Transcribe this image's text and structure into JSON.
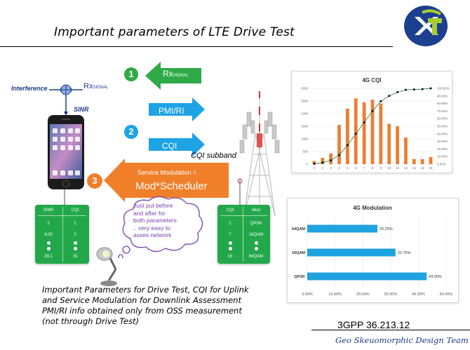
{
  "slide": {
    "title": "Important parameters of LTE Drive Test",
    "reference": "3GPP 36.213.12",
    "footer": "Geo Skeuomorphic Design Team",
    "logo_icon": "xl-logo-icon",
    "caption_lines": [
      "Important Parameters for Drive Test, CQI for Uplink",
      "and Service Modulation for Downlink Assessment",
      "PMI/RI info obtained only from OSS measurement",
      "(not through Drive Test)"
    ]
  },
  "diagram": {
    "interference": "Interference",
    "rx_signal_left": "Rx",
    "rx_signal_left_sub": "SIGNAL",
    "sinr": "SINR",
    "arrow1": {
      "num": "1",
      "label": "Rx",
      "label_sub": "SIGNAL",
      "color": "#2eaa47"
    },
    "arrow2": {
      "num": "2",
      "label_top": "PMI/RI",
      "label_bottom": "CQI",
      "color": "#1ea3e4"
    },
    "cqi_subband": "CQI subband",
    "arrow3": {
      "num": "3",
      "line1": "Service Modulation =",
      "line2": "Mod*Scheduler",
      "color": "#f07f2a"
    },
    "cloud_lines": [
      "Just put before",
      "and after for",
      "both parameters",
      ".. very easy to",
      "asses network"
    ],
    "table_left": {
      "headers": [
        "SINR",
        "CQI"
      ],
      "rows": [
        [
          "2",
          "1"
        ],
        [
          "4.05",
          "2"
        ],
        [
          "29.1",
          "15"
        ]
      ]
    },
    "table_right": {
      "headers": [
        "CQI",
        "Mod"
      ],
      "rows": [
        [
          "1",
          "QPSK"
        ],
        [
          "7",
          "16QAM"
        ],
        [
          "15",
          "64QAM"
        ]
      ]
    }
  },
  "chart_data": [
    {
      "type": "bar",
      "title": "4G CQI",
      "categories": [
        "1",
        "2",
        "3",
        "4",
        "5",
        "6",
        "7",
        "8",
        "9",
        "10",
        "11",
        "12",
        "13",
        "14",
        "15"
      ],
      "values": [
        120,
        250,
        420,
        1550,
        2200,
        2600,
        2450,
        2550,
        2400,
        1600,
        1500,
        1050,
        200,
        200,
        280
      ],
      "ylim": [
        0,
        3000
      ],
      "yticks": [
        "0",
        "500",
        "1000",
        "1500",
        "2000",
        "2500",
        "3000"
      ],
      "cumulative_percent": [
        0.5,
        2,
        5,
        12,
        25,
        40,
        55,
        70,
        83,
        90,
        95,
        98,
        98.5,
        99,
        100
      ],
      "y2ticks": [
        "0.00%",
        "10.00%",
        "20.00%",
        "30.00%",
        "40.00%",
        "50.00%",
        "60.00%",
        "70.00%",
        "80.00%",
        "90.00%",
        "100.00%"
      ],
      "bar_color": "#ed7d31",
      "line_color": "#2e8b57"
    },
    {
      "type": "bar",
      "orientation": "horizontal",
      "title": "4G Modulation",
      "categories": [
        "64QAM",
        "16QAM",
        "QPSK"
      ],
      "values": [
        25.25,
        31.75,
        43.0
      ],
      "value_labels": [
        "25.25%",
        "31.75%",
        "43.00%"
      ],
      "xlim": [
        0,
        50
      ],
      "xticks": [
        "0.00%",
        "10.00%",
        "20.00%",
        "30.00%",
        "40.00%",
        "50.00%"
      ],
      "bar_color": "#1fa2e0"
    }
  ]
}
